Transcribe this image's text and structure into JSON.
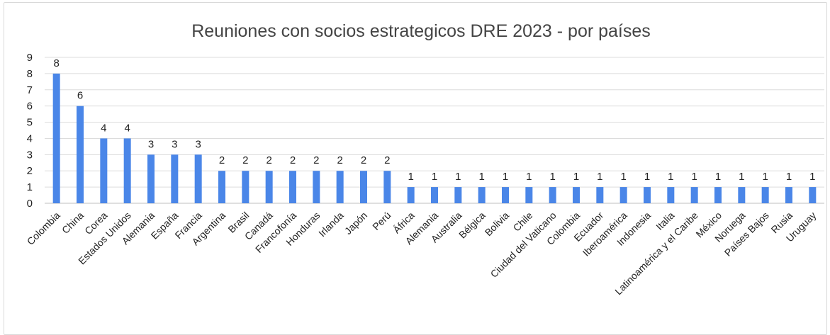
{
  "chart_data": {
    "type": "bar",
    "title": "Reuniones con socios estrategicos DRE 2023 - por países",
    "xlabel": "",
    "ylabel": "",
    "ylim": [
      0,
      9
    ],
    "yticks": [
      0,
      1,
      2,
      3,
      4,
      5,
      6,
      7,
      8,
      9
    ],
    "grid": true,
    "legend": "none",
    "bar_color": "#4A86E8",
    "categories": [
      "Colombia",
      "China",
      "Corea",
      "Estados Unidos",
      "Alemania",
      "España",
      "Francia",
      "Argentina",
      "Brasil",
      "Canadá",
      "Francofonía",
      "Honduras",
      "Irlanda",
      "Japón",
      "Perú",
      "África",
      "Alemania",
      "Australia",
      "Bélgica",
      "Bolivia",
      "Chile",
      "Ciudad del Vaticano",
      "Colombia",
      "Ecuador",
      "Iberoamérica",
      "Indonesia",
      "Italia",
      "Latinoamérica y el Caribe",
      "México",
      "Noruega",
      "Países Bajos",
      "Rusia",
      "Uruguay"
    ],
    "values": [
      8,
      6,
      4,
      4,
      3,
      3,
      3,
      2,
      2,
      2,
      2,
      2,
      2,
      2,
      2,
      1,
      1,
      1,
      1,
      1,
      1,
      1,
      1,
      1,
      1,
      1,
      1,
      1,
      1,
      1,
      1,
      1,
      1
    ]
  }
}
